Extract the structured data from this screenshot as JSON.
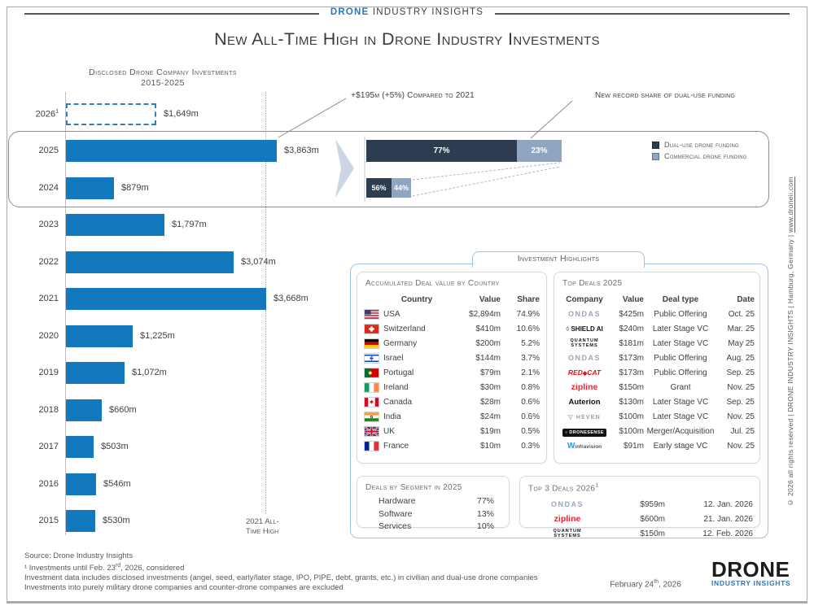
{
  "page": {
    "brand": {
      "blue": "DRONE",
      "rest": "INDUSTRY INSIGHTS"
    },
    "title": "New All-Time High in Drone Industry Investments"
  },
  "annotations": {
    "growth": "+$195m (+5%) Compared to 2021",
    "record": "New record share of dual-use funding",
    "reference_line1": "2021 All-",
    "reference_line2": "Time High"
  },
  "highlights_tab": "Investment Highlights",
  "icons": {
    "shield": "◊",
    "cat": "◆",
    "heven": "▽",
    "dronesense_dot": "●",
    "infravision_w": "W"
  },
  "colors": {
    "bar_blue": "#1478BE",
    "dual_use": "#2D3C50",
    "commercial": "#8FA5C1",
    "accent_blue": "#2E75B6",
    "panel_border": "#9DC3E6"
  },
  "chart_data": [
    {
      "type": "bar",
      "orientation": "horizontal",
      "title": "Disclosed Drone Company Investments",
      "subtitle": "2015-2025",
      "unit": "USD millions",
      "bar_color": "#1478BE",
      "bars": [
        {
          "year": "2026",
          "sup": "1",
          "value": 1649,
          "label": "$1,649m",
          "dashed": true
        },
        {
          "year": "2025",
          "value": 3863,
          "label": "$3,863m"
        },
        {
          "year": "2024",
          "value": 879,
          "label": "$879m"
        },
        {
          "year": "2023",
          "value": 1797,
          "label": "$1,797m"
        },
        {
          "year": "2022",
          "value": 3074,
          "label": "$3,074m"
        },
        {
          "year": "2021",
          "value": 3668,
          "label": "$3,668m"
        },
        {
          "year": "2020",
          "value": 1225,
          "label": "$1,225m"
        },
        {
          "year": "2019",
          "value": 1072,
          "label": "$1,072m"
        },
        {
          "year": "2018",
          "value": 660,
          "label": "$660m"
        },
        {
          "year": "2017",
          "value": 503,
          "label": "$503m"
        },
        {
          "year": "2016",
          "value": 546,
          "label": "$546m"
        },
        {
          "year": "2015",
          "value": 530,
          "label": "$530m"
        }
      ],
      "reference_line": {
        "at_year": "2021",
        "value": 3668,
        "label": "2021 All-Time High"
      }
    },
    {
      "type": "bar",
      "subtype": "stacked-horizontal",
      "unit": "percent",
      "categories": [
        "2025",
        "2024"
      ],
      "series": [
        {
          "name": "Dual-use drone funding",
          "color": "#2D3C50",
          "values": [
            77,
            56
          ]
        },
        {
          "name": "Commercial drone funding",
          "color": "#8FA5C1",
          "values": [
            23,
            44
          ]
        }
      ],
      "bar_labels": [
        [
          "77%",
          "23%"
        ],
        [
          "56%",
          "44%"
        ]
      ],
      "legend_position": "right"
    },
    {
      "type": "table",
      "title": "Accumulated Deal value by Country",
      "headers": [
        "Country",
        "Value",
        "Share"
      ],
      "rows": [
        {
          "country": "USA",
          "value": "$2,894m",
          "share": "74.9%"
        },
        {
          "country": "Switzerland",
          "value": "$410m",
          "share": "10.6%"
        },
        {
          "country": "Germany",
          "value": "$200m",
          "share": "5.2%"
        },
        {
          "country": "Israel",
          "value": "$144m",
          "share": "3.7%"
        },
        {
          "country": "Portugal",
          "value": "$79m",
          "share": "2.1%"
        },
        {
          "country": "Ireland",
          "value": "$30m",
          "share": "0.8%"
        },
        {
          "country": "Canada",
          "value": "$28m",
          "share": "0.6%"
        },
        {
          "country": "India",
          "value": "$24m",
          "share": "0.6%"
        },
        {
          "country": "UK",
          "value": "$19m",
          "share": "0.5%"
        },
        {
          "country": "France",
          "value": "$10m",
          "share": "0.3%"
        }
      ]
    },
    {
      "type": "table",
      "title": "Top Deals 2025",
      "headers": [
        "Company",
        "Value",
        "Deal type",
        "Date"
      ],
      "rows": [
        {
          "logo": "ondas",
          "company": "Ondas",
          "value": "$425m",
          "deal_type": "Public Offering",
          "date": "Oct. 25"
        },
        {
          "logo": "shieldai",
          "company": "Shield AI",
          "value": "$240m",
          "deal_type": "Later Stage VC",
          "date": "Mar. 25"
        },
        {
          "logo": "quantum",
          "company": "Quantum Systems",
          "value": "$181m",
          "deal_type": "Later Stage VC",
          "date": "May 25"
        },
        {
          "logo": "ondas",
          "company": "Ondas",
          "value": "$173m",
          "deal_type": "Public Offering",
          "date": "Aug. 25"
        },
        {
          "logo": "redcat",
          "company": "Red Cat",
          "value": "$173m",
          "deal_type": "Public Offering",
          "date": "Sep. 25"
        },
        {
          "logo": "zipline",
          "company": "zipline",
          "value": "$150m",
          "deal_type": "Grant",
          "date": "Nov. 25"
        },
        {
          "logo": "auterion",
          "company": "Auterion",
          "value": "$130m",
          "deal_type": "Later Stage VC",
          "date": "Sep. 25"
        },
        {
          "logo": "heven",
          "company": "Heven",
          "value": "$100m",
          "deal_type": "Later Stage VC",
          "date": "Nov. 25"
        },
        {
          "logo": "dronesense",
          "company": "DroneSense",
          "value": "$100m",
          "deal_type": "Merger/Acquisition",
          "date": "Jul. 25"
        },
        {
          "logo": "infravision",
          "company": "infravision",
          "value": "$91m",
          "deal_type": "Early stage VC",
          "date": "Nov. 25"
        }
      ]
    },
    {
      "type": "bar",
      "title": "Deals by Segment in 2025",
      "unit": "percent",
      "categories": [
        "Hardware",
        "Software",
        "Services"
      ],
      "values": [
        77,
        13,
        10
      ],
      "value_labels": [
        "77%",
        "13%",
        "10%"
      ]
    },
    {
      "type": "table",
      "title": "Top 3 Deals 2026",
      "sup": "1",
      "headers": [
        "Company",
        "Value",
        "Date"
      ],
      "rows": [
        {
          "logo": "ondas",
          "company": "Ondas",
          "value": "$959m",
          "date": "12. Jan. 2026"
        },
        {
          "logo": "zipline",
          "company": "zipline",
          "value": "$600m",
          "date": "21. Jan. 2026"
        },
        {
          "logo": "quantum",
          "company": "Quantum Systems",
          "value": "$150m",
          "date": "12. Feb. 2026"
        }
      ]
    }
  ],
  "footer": {
    "line1": "Source: Drone Industry Insights",
    "line2_a": "¹ Investments until Feb. 23",
    "line2_sup": "rd",
    "line2_b": ", 2026, considered",
    "line3": "Investment data includes disclosed investments (angel, seed, early/later stage, IPO, PIPE, debt, grants, etc.) in civilian and dual-use drone companies",
    "line4": "Investments into purely military drone companies and counter-drone companies are excluded",
    "date_a": "February 24",
    "date_sup": "th",
    "date_b": ", 2026",
    "logo_top": "DRONE",
    "logo_bottom": "INDUSTRY INSIGHTS"
  },
  "side_note": {
    "text": "© 2026 all rights reserved  |  DRONE INDUSTRY INSIGHTS  |  Hamburg, Germany  |  ",
    "link": "www.droneii.com"
  }
}
